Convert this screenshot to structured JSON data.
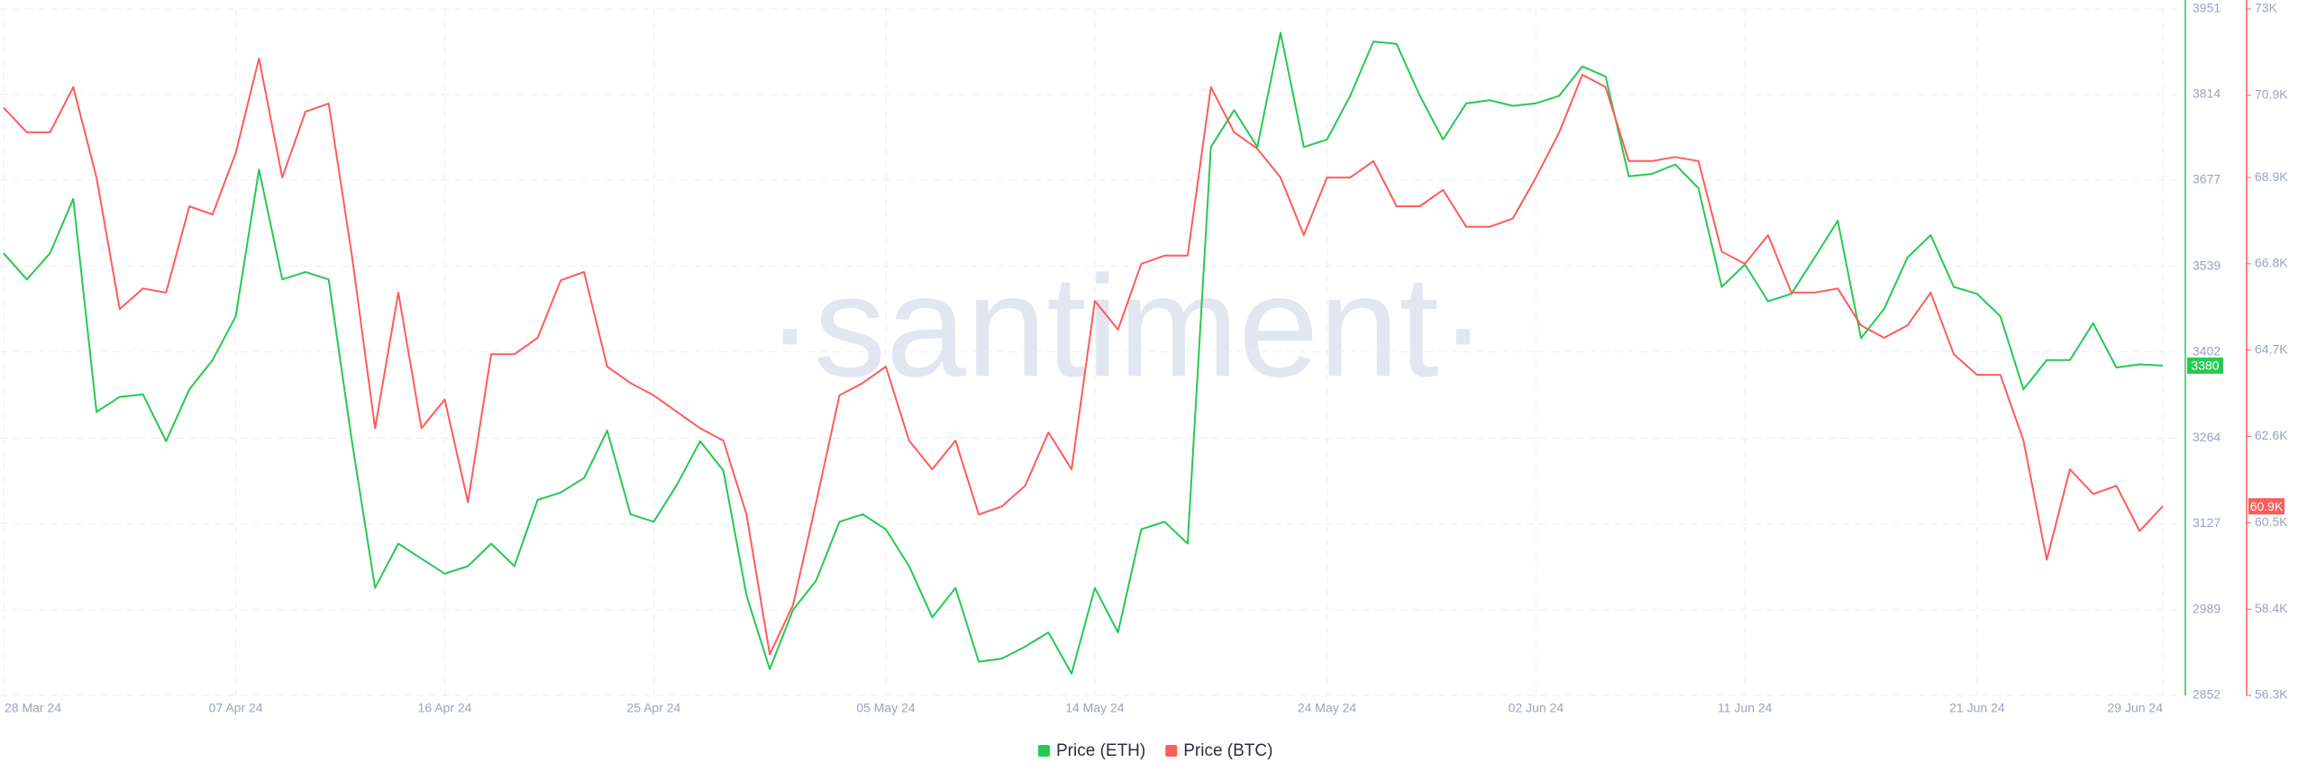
{
  "chart_data": {
    "type": "line",
    "watermark": "·santiment·",
    "categories": [
      "28 Mar 24",
      null,
      null,
      null,
      null,
      null,
      null,
      null,
      null,
      null,
      "07 Apr 24",
      null,
      null,
      null,
      null,
      null,
      null,
      null,
      null,
      "16 Apr 24",
      null,
      null,
      null,
      null,
      null,
      null,
      null,
      null,
      "25 Apr 24",
      null,
      null,
      null,
      null,
      null,
      null,
      null,
      null,
      null,
      "05 May 24",
      null,
      null,
      null,
      null,
      null,
      null,
      null,
      null,
      "14 May 24",
      null,
      null,
      null,
      null,
      null,
      null,
      null,
      null,
      null,
      "24 May 24",
      null,
      null,
      null,
      null,
      null,
      null,
      null,
      null,
      "02 Jun 24",
      null,
      null,
      null,
      null,
      null,
      null,
      null,
      null,
      "11 Jun 24",
      null,
      null,
      null,
      null,
      null,
      null,
      null,
      null,
      null,
      "21 Jun 24",
      null,
      null,
      null,
      null,
      null,
      null,
      null,
      "29 Jun 24"
    ],
    "series": [
      {
        "name": "Price (ETH)",
        "color": "#26c953",
        "axis": "y",
        "last_value": 3380,
        "values": [
          3560,
          3518,
          3560,
          3647,
          3306,
          3330,
          3334,
          3259,
          3342,
          3389,
          3459,
          3694,
          3518,
          3530,
          3518,
          3259,
          3024,
          3095,
          3071,
          3047,
          3059,
          3095,
          3059,
          3165,
          3177,
          3200,
          3276,
          3142,
          3130,
          3189,
          3259,
          3212,
          3012,
          2894,
          2989,
          3036,
          3130,
          3142,
          3118,
          3059,
          2977,
          3024,
          2906,
          2911,
          2930,
          2953,
          2887,
          3024,
          2953,
          3118,
          3130,
          3095,
          3730,
          3789,
          3730,
          3913,
          3730,
          3742,
          3812,
          3899,
          3895,
          3812,
          3742,
          3800,
          3805,
          3796,
          3800,
          3812,
          3859,
          3843,
          3683,
          3687,
          3702,
          3664,
          3506,
          3542,
          3483,
          3495,
          3553,
          3612,
          3424,
          3471,
          3553,
          3589,
          3506,
          3495,
          3459,
          3342,
          3389,
          3389,
          3448,
          3377,
          3382,
          3380
        ]
      },
      {
        "name": "Price (BTC)",
        "color": "#ff5b5b",
        "axis": "y2",
        "last_value": {
          "value": 60900,
          "label": "60.9K"
        },
        "values": [
          70600,
          70000,
          70000,
          71100,
          68900,
          65700,
          66200,
          66100,
          68200,
          68000,
          69500,
          71800,
          68900,
          70500,
          70700,
          67000,
          62800,
          66100,
          62800,
          63500,
          61000,
          64600,
          64600,
          65000,
          66400,
          66600,
          64300,
          63900,
          63600,
          63200,
          62800,
          62500,
          60700,
          57300,
          58500,
          61000,
          63600,
          63900,
          64300,
          62500,
          61800,
          62500,
          60700,
          60900,
          61400,
          62700,
          61800,
          65900,
          65200,
          66800,
          67000,
          67000,
          71100,
          70000,
          69600,
          68900,
          67500,
          68900,
          68900,
          69300,
          68200,
          68200,
          68600,
          67700,
          67700,
          67900,
          68900,
          70000,
          71400,
          71100,
          69300,
          69300,
          69400,
          69300,
          67100,
          66800,
          67500,
          66100,
          66100,
          66200,
          65300,
          65000,
          65300,
          66100,
          64600,
          64100,
          64100,
          62500,
          59600,
          61800,
          61200,
          61400,
          60300,
          60900
        ]
      }
    ],
    "ylim": [
      2852,
      3951
    ],
    "yticks": [
      2852,
      2989,
      3127,
      3264,
      3402,
      3539,
      3677,
      3814,
      3951
    ],
    "y2lim": [
      56300,
      73000
    ],
    "y2ticks": [
      {
        "value": 56300,
        "label": "56.3K"
      },
      {
        "value": 58400,
        "label": "58.4K"
      },
      {
        "value": 60500,
        "label": "60.5K"
      },
      {
        "value": 62600,
        "label": "62.6K"
      },
      {
        "value": 64700,
        "label": "64.7K"
      },
      {
        "value": 66800,
        "label": "66.8K"
      },
      {
        "value": 68900,
        "label": "68.9K"
      },
      {
        "value": 70900,
        "label": "70.9K"
      },
      {
        "value": 73000,
        "label": "73K"
      }
    ],
    "grid": true,
    "legend": "bottom"
  }
}
